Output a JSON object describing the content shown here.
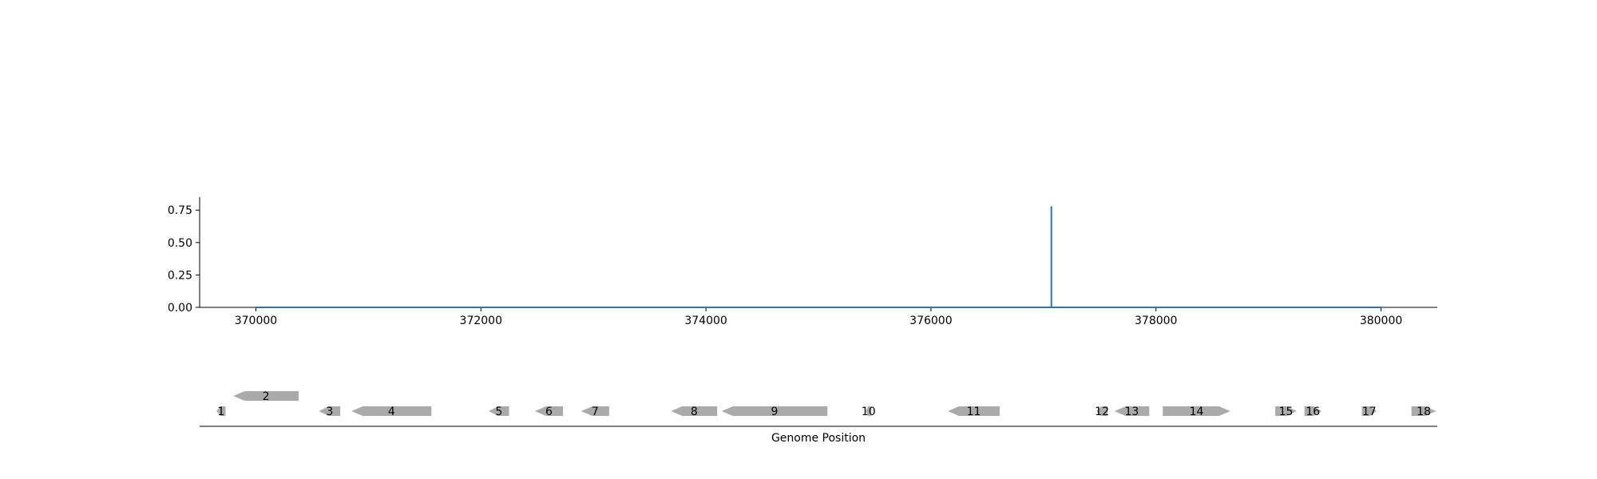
{
  "chart_data": [
    {
      "type": "line",
      "xlim": [
        369500,
        380500
      ],
      "ylim": [
        0,
        0.85
      ],
      "x_ticks": [
        370000,
        372000,
        374000,
        376000,
        378000,
        380000
      ],
      "x_tick_labels": [
        "370000",
        "372000",
        "374000",
        "376000",
        "378000",
        "380000"
      ],
      "y_ticks": [
        0.0,
        0.25,
        0.5,
        0.75
      ],
      "y_tick_labels": [
        "0.00",
        "0.25",
        "0.50",
        "0.75"
      ],
      "series": [
        {
          "color": "#1f77b4",
          "x": [
            370000,
            377070,
            377070,
            377070,
            380000
          ],
          "y": [
            0,
            0,
            0.78,
            0,
            0
          ]
        }
      ]
    },
    {
      "type": "gene-track",
      "xlabel": "Genome Position",
      "xlim": [
        369500,
        380500
      ],
      "feature_color": "#aaaaaa",
      "features": [
        {
          "label": "1",
          "start": 369650,
          "end": 369730,
          "strand": -1,
          "row": 0
        },
        {
          "label": "2",
          "start": 369800,
          "end": 370380,
          "strand": -1,
          "row": 1
        },
        {
          "label": "3",
          "start": 370560,
          "end": 370750,
          "strand": -1,
          "row": 0
        },
        {
          "label": "4",
          "start": 370850,
          "end": 371560,
          "strand": -1,
          "row": 0
        },
        {
          "label": "5",
          "start": 372070,
          "end": 372250,
          "strand": -1,
          "row": 0
        },
        {
          "label": "6",
          "start": 372480,
          "end": 372730,
          "strand": -1,
          "row": 0
        },
        {
          "label": "7",
          "start": 372890,
          "end": 373140,
          "strand": -1,
          "row": 0
        },
        {
          "label": "8",
          "start": 373690,
          "end": 374100,
          "strand": -1,
          "row": 0
        },
        {
          "label": "9",
          "start": 374140,
          "end": 375080,
          "strand": -1,
          "row": 0
        },
        {
          "label": "10",
          "start": 375420,
          "end": 375470,
          "strand": -1,
          "row": 0
        },
        {
          "label": "11",
          "start": 376150,
          "end": 376610,
          "strand": -1,
          "row": 0
        },
        {
          "label": "12",
          "start": 377470,
          "end": 377570,
          "strand": -1,
          "row": 0
        },
        {
          "label": "13",
          "start": 377630,
          "end": 377940,
          "strand": -1,
          "row": 0
        },
        {
          "label": "14",
          "start": 378060,
          "end": 378660,
          "strand": 1,
          "row": 0
        },
        {
          "label": "15",
          "start": 379060,
          "end": 379250,
          "strand": 1,
          "row": 0
        },
        {
          "label": "16",
          "start": 379320,
          "end": 379470,
          "strand": 1,
          "row": 0
        },
        {
          "label": "17",
          "start": 379830,
          "end": 379960,
          "strand": 1,
          "row": 0
        },
        {
          "label": "18",
          "start": 380270,
          "end": 380490,
          "strand": 1,
          "row": 0
        }
      ]
    }
  ]
}
